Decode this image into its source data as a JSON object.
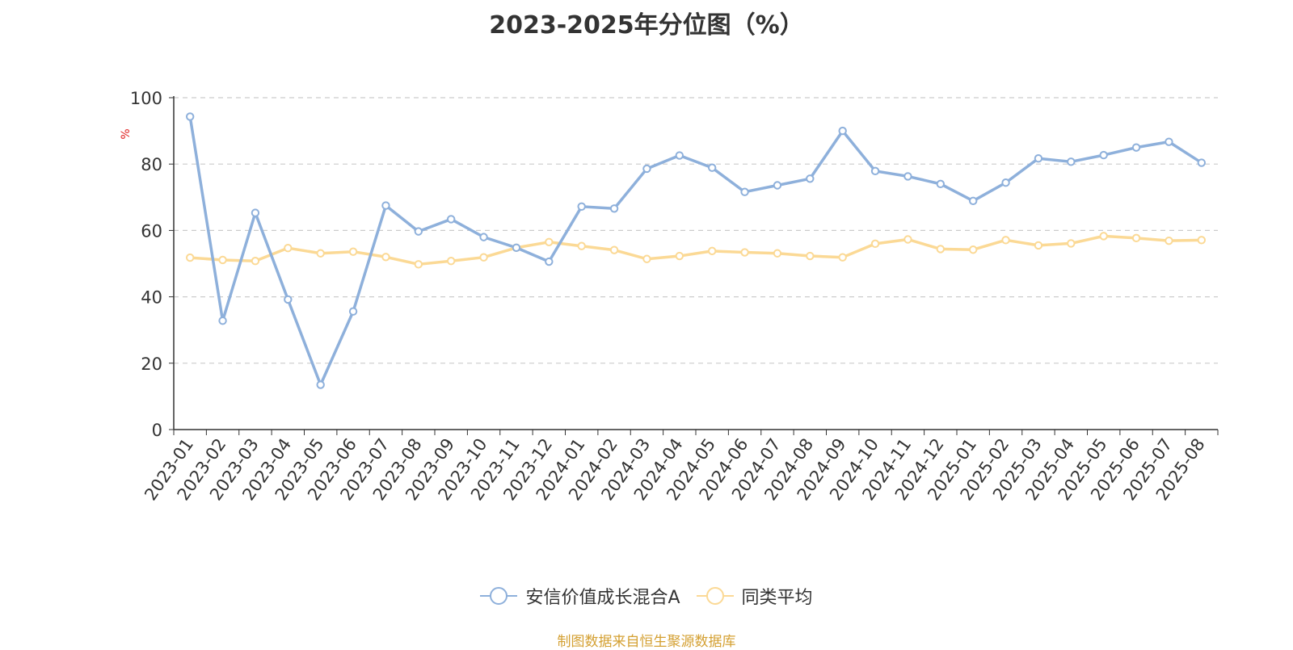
{
  "chart_data": {
    "type": "line",
    "title": "2023-2025年分位图（%）",
    "ylabel": "%",
    "xlabel": "",
    "ylim": [
      0,
      100
    ],
    "yticks": [
      0,
      20,
      40,
      60,
      80,
      100
    ],
    "grid": true,
    "legend_position": "bottom-center",
    "categories": [
      "2023-01",
      "2023-02",
      "2023-03",
      "2023-04",
      "2023-05",
      "2023-06",
      "2023-07",
      "2023-08",
      "2023-09",
      "2023-10",
      "2023-11",
      "2023-12",
      "2024-01",
      "2024-02",
      "2024-03",
      "2024-04",
      "2024-05",
      "2024-06",
      "2024-07",
      "2024-08",
      "2024-09",
      "2024-10",
      "2024-11",
      "2024-12",
      "2025-01",
      "2025-02",
      "2025-03",
      "2025-04",
      "2025-05",
      "2025-06",
      "2025-07",
      "2025-08"
    ],
    "series": [
      {
        "name": "安信价值成长混合A",
        "color": "#8eb0db",
        "values": [
          94.3,
          32.8,
          65.3,
          39.2,
          13.5,
          35.6,
          67.5,
          59.7,
          63.4,
          58.0,
          54.8,
          50.6,
          67.2,
          66.6,
          78.6,
          82.6,
          78.9,
          71.6,
          73.6,
          75.6,
          90.0,
          77.9,
          76.3,
          74.0,
          68.9,
          74.4,
          81.7,
          80.7,
          82.7,
          85.0,
          86.7,
          80.4
        ]
      },
      {
        "name": "同类平均",
        "color": "#fbd995",
        "values": [
          51.8,
          51.1,
          50.8,
          54.7,
          53.1,
          53.6,
          52.0,
          49.8,
          50.8,
          51.9,
          54.8,
          56.5,
          55.3,
          54.1,
          51.4,
          52.3,
          53.8,
          53.4,
          53.1,
          52.3,
          51.9,
          56.0,
          57.3,
          54.4,
          54.2,
          57.1,
          55.5,
          56.1,
          58.3,
          57.7,
          56.9,
          57.1
        ]
      }
    ]
  },
  "source_text": "制图数据来自恒生聚源数据库"
}
